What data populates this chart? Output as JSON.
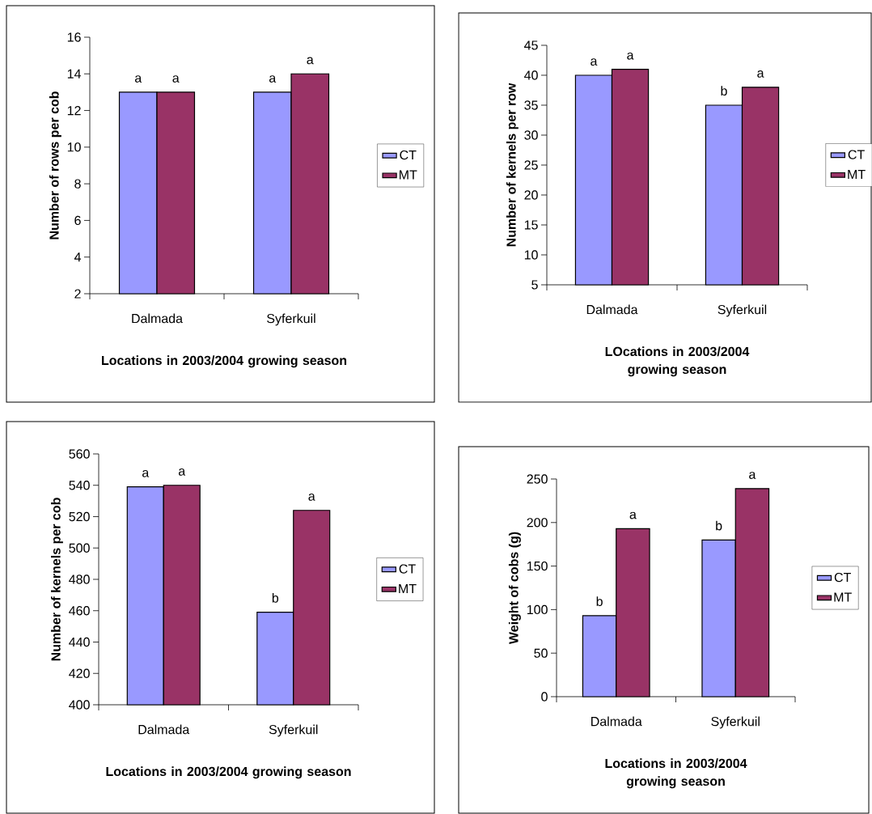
{
  "chart_data": [
    {
      "type": "bar",
      "ylabel": "Number of rows per cob",
      "xlabel": "Locations in 2003/2004 growing season",
      "categories": [
        "Dalmada",
        "Syferkuil"
      ],
      "ylim": [
        2,
        16
      ],
      "yticks": [
        2,
        4,
        6,
        8,
        10,
        12,
        14,
        16
      ],
      "legend": "right",
      "series": [
        {
          "name": "CT",
          "color": "#9999ff",
          "values": [
            13,
            13
          ],
          "value_labels": [
            "a",
            "a"
          ]
        },
        {
          "name": "MT",
          "color": "#993366",
          "values": [
            13,
            14
          ],
          "value_labels": [
            "a",
            "a"
          ]
        }
      ]
    },
    {
      "type": "bar",
      "ylabel": "Number of kernels per row",
      "xlabel": "LOcations in 2003/2004 growing season",
      "categories": [
        "Dalmada",
        "Syferkuil"
      ],
      "ylim": [
        5,
        45
      ],
      "yticks": [
        5,
        10,
        15,
        20,
        25,
        30,
        35,
        40,
        45
      ],
      "legend": "right",
      "series": [
        {
          "name": "CT",
          "color": "#9999ff",
          "values": [
            40,
            35
          ],
          "value_labels": [
            "a",
            "b"
          ]
        },
        {
          "name": "MT",
          "color": "#993366",
          "values": [
            41,
            38
          ],
          "value_labels": [
            "a",
            "a"
          ]
        }
      ]
    },
    {
      "type": "bar",
      "ylabel": "Number of kernels per cob",
      "xlabel": "Locations in 2003/2004 growing season",
      "categories": [
        "Dalmada",
        "Syferkuil"
      ],
      "ylim": [
        400,
        560
      ],
      "yticks": [
        400,
        420,
        440,
        460,
        480,
        500,
        520,
        540,
        560
      ],
      "legend": "right",
      "series": [
        {
          "name": "CT",
          "color": "#9999ff",
          "values": [
            539,
            459
          ],
          "value_labels": [
            "a",
            "b"
          ]
        },
        {
          "name": "MT",
          "color": "#993366",
          "values": [
            540,
            524
          ],
          "value_labels": [
            "a",
            "a"
          ]
        }
      ]
    },
    {
      "type": "bar",
      "ylabel": "Weight of cobs (g)",
      "xlabel": "Locations in 2003/2004 growing season",
      "categories": [
        "Dalmada",
        "Syferkuil"
      ],
      "ylim": [
        0,
        250
      ],
      "yticks": [
        0,
        50,
        100,
        150,
        200,
        250
      ],
      "legend": "right",
      "series": [
        {
          "name": "CT",
          "color": "#9999ff",
          "values": [
            93,
            180
          ],
          "value_labels": [
            "b",
            "b"
          ]
        },
        {
          "name": "MT",
          "color": "#993366",
          "values": [
            193,
            239
          ],
          "value_labels": [
            "a",
            "a"
          ]
        }
      ]
    }
  ]
}
